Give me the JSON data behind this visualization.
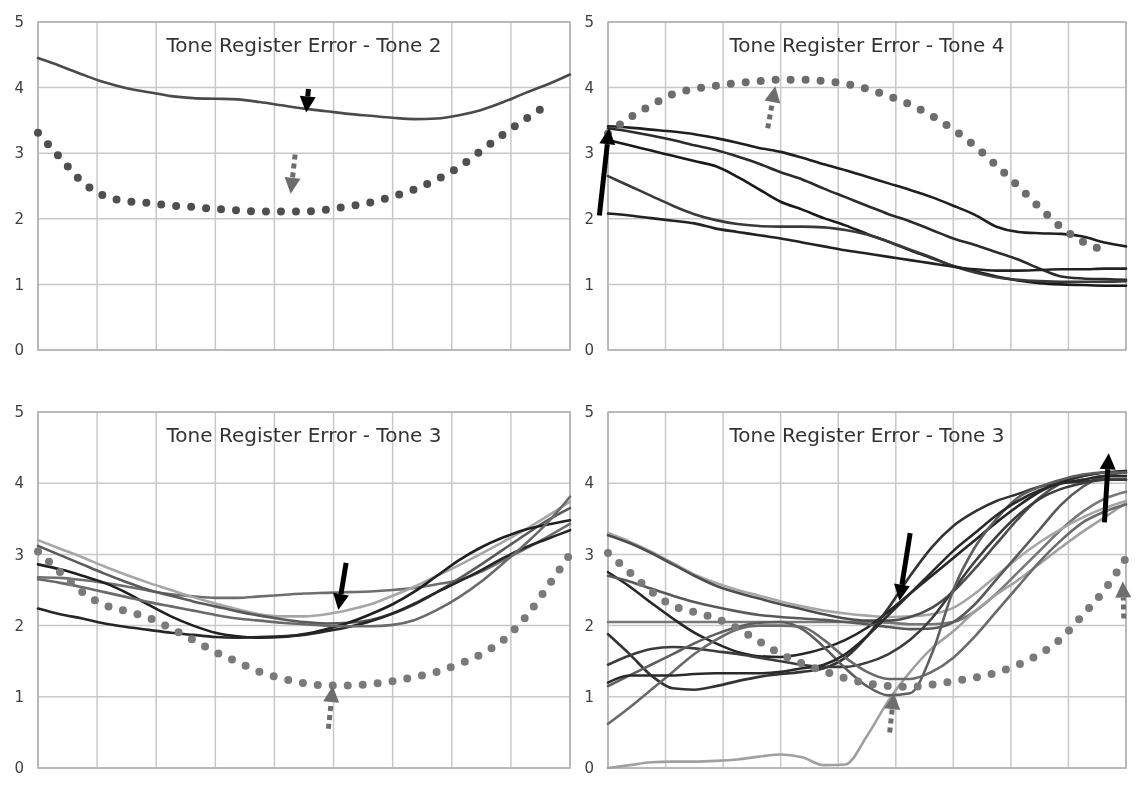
{
  "chart_data": [
    {
      "type": "line",
      "title": "Tone Register Error - Tone 2",
      "categories": [
        null,
        null,
        null,
        null,
        null,
        null,
        null,
        null,
        null,
        null,
        null,
        null,
        null,
        null,
        null,
        null,
        null,
        null,
        null,
        null,
        null,
        null,
        null,
        null,
        null
      ],
      "ylim": [
        0,
        5
      ],
      "yticks": [
        0,
        1,
        2,
        3,
        4,
        5
      ],
      "grid": true,
      "tick_labels": "y",
      "series": [
        {
          "color": "#4a4a4a",
          "values": [
            4.45,
            4.33,
            4.2,
            4.08,
            3.99,
            3.93,
            3.87,
            3.84,
            3.83,
            3.82,
            3.78,
            3.73,
            3.68,
            3.64,
            3.6,
            3.57,
            3.54,
            3.52,
            3.53,
            3.58,
            3.66,
            3.78,
            3.92,
            4.05,
            4.2
          ]
        },
        {
          "color": "#4f4f4f",
          "line_style": "dotted",
          "values": [
            3.31,
            2.93,
            2.56,
            2.35,
            2.27,
            2.24,
            2.2,
            2.18,
            2.15,
            2.13,
            2.11,
            2.11,
            2.11,
            2.14,
            2.19,
            2.25,
            2.34,
            2.45,
            2.6,
            2.79,
            3.04,
            3.29,
            3.52,
            3.74,
            null
          ]
        }
      ]
    },
    {
      "type": "line",
      "title": "Tone Register Error - Tone 4",
      "categories": [
        null,
        null,
        null,
        null,
        null,
        null,
        null,
        null,
        null,
        null,
        null,
        null,
        null,
        null,
        null,
        null,
        null,
        null,
        null,
        null,
        null,
        null,
        null,
        null,
        null
      ],
      "ylim": [
        0,
        5
      ],
      "yticks": [
        0,
        1,
        2,
        3,
        4,
        5
      ],
      "grid": true,
      "tick_labels": "y",
      "series": [
        {
          "color": "#1f1f1f",
          "values": [
            3.41,
            3.39,
            3.36,
            3.33,
            3.29,
            3.23,
            3.16,
            3.08,
            3.02,
            2.93,
            2.83,
            2.74,
            2.64,
            2.54,
            2.44,
            2.33,
            2.2,
            2.06,
            1.88,
            1.8,
            1.78,
            1.77,
            1.73,
            1.64,
            1.58
          ]
        },
        {
          "color": "#2b2b2b",
          "values": [
            3.38,
            3.33,
            3.27,
            3.2,
            3.12,
            3.05,
            2.95,
            2.84,
            2.71,
            2.6,
            2.46,
            2.33,
            2.2,
            2.07,
            1.96,
            1.83,
            1.7,
            1.6,
            1.49,
            1.38,
            1.24,
            1.12,
            1.09,
            1.08,
            1.07
          ]
        },
        {
          "color": "#1a1a1a",
          "values": [
            3.2,
            3.12,
            3.04,
            2.96,
            2.88,
            2.8,
            2.64,
            2.45,
            2.26,
            2.14,
            2.01,
            1.9,
            1.77,
            1.65,
            1.52,
            1.4,
            1.28,
            1.2,
            1.12,
            1.06,
            1.02,
            1.0,
            0.99,
            0.98,
            0.98
          ]
        },
        {
          "color": "#3a3a3a",
          "values": [
            2.65,
            2.5,
            2.35,
            2.2,
            2.07,
            1.98,
            1.92,
            1.89,
            1.88,
            1.88,
            1.87,
            1.83,
            1.76,
            1.65,
            1.53,
            1.41,
            1.28,
            1.18,
            1.11,
            1.07,
            1.05,
            1.04,
            1.04,
            1.04,
            1.05
          ]
        },
        {
          "color": "#222222",
          "values": [
            2.08,
            2.05,
            2.01,
            1.97,
            1.93,
            1.85,
            1.8,
            1.75,
            1.7,
            1.64,
            1.58,
            1.52,
            1.47,
            1.42,
            1.37,
            1.32,
            1.27,
            1.23,
            1.21,
            1.21,
            1.22,
            1.23,
            1.23,
            1.24,
            1.24
          ]
        },
        {
          "color": "#6d6d6d",
          "line_style": "dotted",
          "values": [
            3.3,
            3.54,
            3.73,
            3.9,
            3.98,
            4.03,
            4.07,
            4.1,
            4.12,
            4.12,
            4.1,
            4.06,
            3.98,
            3.87,
            3.74,
            3.57,
            3.36,
            3.11,
            2.81,
            2.5,
            2.17,
            1.87,
            1.65,
            1.52,
            null
          ]
        }
      ]
    },
    {
      "type": "line",
      "title": "Tone Register Error - Tone 3",
      "categories": [
        null,
        null,
        null,
        null,
        null,
        null,
        null,
        null,
        null,
        null,
        null,
        null,
        null,
        null,
        null,
        null,
        null,
        null,
        null,
        null,
        null,
        null,
        null,
        null,
        null
      ],
      "ylim": [
        0,
        5
      ],
      "yticks": [
        0,
        1,
        2,
        3,
        4,
        5
      ],
      "grid": true,
      "tick_labels": "y",
      "series": [
        {
          "color": "#6e6e6e",
          "values": [
            2.68,
            2.67,
            2.64,
            2.6,
            2.55,
            2.49,
            2.44,
            2.41,
            2.39,
            2.39,
            2.41,
            2.43,
            2.45,
            2.46,
            2.47,
            2.48,
            2.5,
            2.53,
            2.58,
            2.64,
            2.76,
            2.92,
            3.08,
            3.25,
            3.43
          ]
        },
        {
          "color": "#a6a6a6",
          "values": [
            3.2,
            3.08,
            2.96,
            2.83,
            2.71,
            2.6,
            2.5,
            2.4,
            2.31,
            2.23,
            2.16,
            2.13,
            2.13,
            2.16,
            2.22,
            2.3,
            2.42,
            2.55,
            2.7,
            2.85,
            3.01,
            3.18,
            3.35,
            3.54,
            3.74
          ]
        },
        {
          "color": "#5a5a5a",
          "values": [
            3.12,
            2.99,
            2.86,
            2.73,
            2.61,
            2.5,
            2.42,
            2.34,
            2.27,
            2.2,
            2.14,
            2.09,
            2.05,
            2.03,
            2.04,
            2.08,
            2.17,
            2.3,
            2.47,
            2.66,
            2.86,
            3.07,
            3.28,
            3.48,
            3.65
          ]
        },
        {
          "color": "#1f1f1f",
          "values": [
            2.86,
            2.79,
            2.7,
            2.6,
            2.46,
            2.29,
            2.13,
            2.0,
            1.9,
            1.85,
            1.83,
            1.84,
            1.88,
            1.95,
            2.04,
            2.16,
            2.3,
            2.48,
            2.7,
            2.92,
            3.1,
            3.24,
            3.35,
            3.42,
            3.48
          ]
        },
        {
          "color": "#262626",
          "values": [
            2.24,
            2.16,
            2.1,
            2.03,
            1.98,
            1.94,
            1.9,
            1.87,
            1.84,
            1.83,
            1.84,
            1.85,
            1.87,
            1.92,
            1.98,
            2.06,
            2.17,
            2.31,
            2.47,
            2.62,
            2.78,
            2.95,
            3.1,
            3.22,
            3.34
          ]
        },
        {
          "color": "#6a6a6a",
          "values": [
            2.65,
            2.6,
            2.54,
            2.47,
            2.4,
            2.33,
            2.27,
            2.21,
            2.15,
            2.1,
            2.07,
            2.04,
            2.02,
            2.0,
            1.99,
            1.99,
            2.01,
            2.08,
            2.22,
            2.4,
            2.62,
            2.88,
            3.15,
            3.45,
            3.81
          ]
        },
        {
          "color": "#7a7a7a",
          "line_style": "dotted",
          "values": [
            3.04,
            2.75,
            2.47,
            2.29,
            2.2,
            2.11,
            1.96,
            1.8,
            1.63,
            1.49,
            1.35,
            1.26,
            1.19,
            1.16,
            1.16,
            1.18,
            1.22,
            1.28,
            1.35,
            1.46,
            1.6,
            1.8,
            2.12,
            2.55,
            3.0
          ]
        }
      ]
    },
    {
      "type": "line",
      "title": "Tone Register Error - Tone 3",
      "categories": [
        null,
        null,
        null,
        null,
        null,
        null,
        null,
        null,
        null,
        null,
        null,
        null,
        null,
        null,
        null,
        null,
        null,
        null,
        null,
        null,
        null,
        null,
        null,
        null,
        null
      ],
      "ylim": [
        0,
        5
      ],
      "yticks": [
        0,
        1,
        2,
        3,
        4,
        5
      ],
      "grid": true,
      "tick_labels": "y",
      "series": [
        {
          "color": "#777777",
          "values": [
            2.05,
            2.05,
            2.05,
            2.05,
            2.05,
            2.05,
            2.05,
            2.05,
            2.05,
            2.05,
            2.05,
            2.05,
            2.05,
            2.04,
            2.02,
            2.02,
            2.05,
            2.2,
            2.45,
            2.75,
            3.05,
            3.35,
            3.6,
            3.78,
            3.88
          ]
        },
        {
          "color": "#a0a0a0",
          "values": [
            0.0,
            0.04,
            0.08,
            0.09,
            0.09,
            0.1,
            0.12,
            0.16,
            0.19,
            0.15,
            0.04,
            0.05,
            0.45,
            0.95,
            1.35,
            1.68,
            1.92,
            2.2,
            2.44,
            2.64,
            2.87,
            3.1,
            3.32,
            3.52,
            3.72
          ]
        },
        {
          "color": "#a6a6a6",
          "values": [
            3.3,
            3.18,
            3.04,
            2.88,
            2.72,
            2.6,
            2.5,
            2.42,
            2.34,
            2.27,
            2.21,
            2.17,
            2.14,
            2.12,
            2.13,
            2.16,
            2.25,
            2.45,
            2.7,
            2.95,
            3.17,
            3.36,
            3.52,
            3.65,
            3.75
          ]
        },
        {
          "color": "#4d4d4d",
          "values": [
            3.27,
            3.16,
            3.02,
            2.86,
            2.7,
            2.56,
            2.46,
            2.38,
            2.3,
            2.23,
            2.16,
            2.1,
            2.07,
            2.07,
            2.12,
            2.25,
            2.48,
            2.8,
            3.15,
            3.5,
            3.8,
            4.0,
            4.1,
            4.15,
            4.15
          ]
        },
        {
          "color": "#262626",
          "values": [
            2.75,
            2.55,
            2.32,
            2.1,
            1.9,
            1.75,
            1.63,
            1.57,
            1.56,
            1.6,
            1.68,
            1.8,
            1.97,
            2.2,
            2.45,
            2.7,
            2.95,
            3.2,
            3.45,
            3.68,
            3.88,
            4.02,
            4.1,
            4.15,
            4.17
          ]
        },
        {
          "color": "#595959",
          "values": [
            2.7,
            2.62,
            2.52,
            2.42,
            2.33,
            2.26,
            2.2,
            2.15,
            2.12,
            2.1,
            2.08,
            2.05,
            2.02,
            1.98,
            1.95,
            1.96,
            2.05,
            2.3,
            2.65,
            3.0,
            3.35,
            3.7,
            3.95,
            4.1,
            4.15
          ]
        },
        {
          "color": "#333333",
          "values": [
            1.88,
            1.6,
            1.3,
            1.12,
            1.1,
            1.15,
            1.22,
            1.28,
            1.32,
            1.35,
            1.4,
            1.55,
            1.85,
            2.25,
            2.7,
            3.1,
            3.4,
            3.6,
            3.75,
            3.85,
            3.95,
            4.0,
            4.02,
            4.05,
            4.05
          ]
        },
        {
          "color": "#3c3c3c",
          "values": [
            1.45,
            1.58,
            1.67,
            1.7,
            1.68,
            1.64,
            1.6,
            1.55,
            1.5,
            1.45,
            1.42,
            1.42,
            1.48,
            1.6,
            1.8,
            2.1,
            2.5,
            2.9,
            3.25,
            3.55,
            3.78,
            3.92,
            4.0,
            4.05,
            4.05
          ]
        },
        {
          "color": "#5e5e5e",
          "values": [
            1.15,
            1.3,
            1.45,
            1.6,
            1.75,
            1.88,
            1.98,
            2.04,
            2.05,
            1.95,
            1.7,
            1.4,
            1.15,
            1.02,
            1.05,
            1.6,
            2.5,
            3.1,
            3.5,
            3.8,
            3.95,
            4.05,
            4.12,
            4.15,
            4.15
          ]
        },
        {
          "color": "#6a6a6a",
          "values": [
            0.62,
            0.85,
            1.1,
            1.35,
            1.6,
            1.8,
            1.95,
            2.0,
            2.0,
            1.98,
            1.8,
            1.55,
            1.35,
            1.25,
            1.25,
            1.35,
            1.55,
            1.85,
            2.2,
            2.55,
            2.9,
            3.2,
            3.45,
            3.6,
            3.7
          ]
        },
        {
          "color": "#2a2a2a",
          "values": [
            1.2,
            1.3,
            1.3,
            1.3,
            1.32,
            1.33,
            1.33,
            1.33,
            1.35,
            1.4,
            1.45,
            1.6,
            1.85,
            2.15,
            2.45,
            2.75,
            3.05,
            3.3,
            3.55,
            3.75,
            3.9,
            4.0,
            4.05,
            4.1,
            4.1
          ]
        },
        {
          "color": "#7a7a7a",
          "line_style": "dotted",
          "values": [
            3.02,
            2.75,
            2.48,
            2.28,
            2.19,
            2.1,
            1.96,
            1.78,
            1.6,
            1.47,
            1.36,
            1.26,
            1.19,
            1.15,
            1.14,
            1.17,
            1.22,
            1.27,
            1.34,
            1.45,
            1.6,
            1.82,
            2.15,
            2.5,
            2.95
          ]
        }
      ]
    }
  ]
}
